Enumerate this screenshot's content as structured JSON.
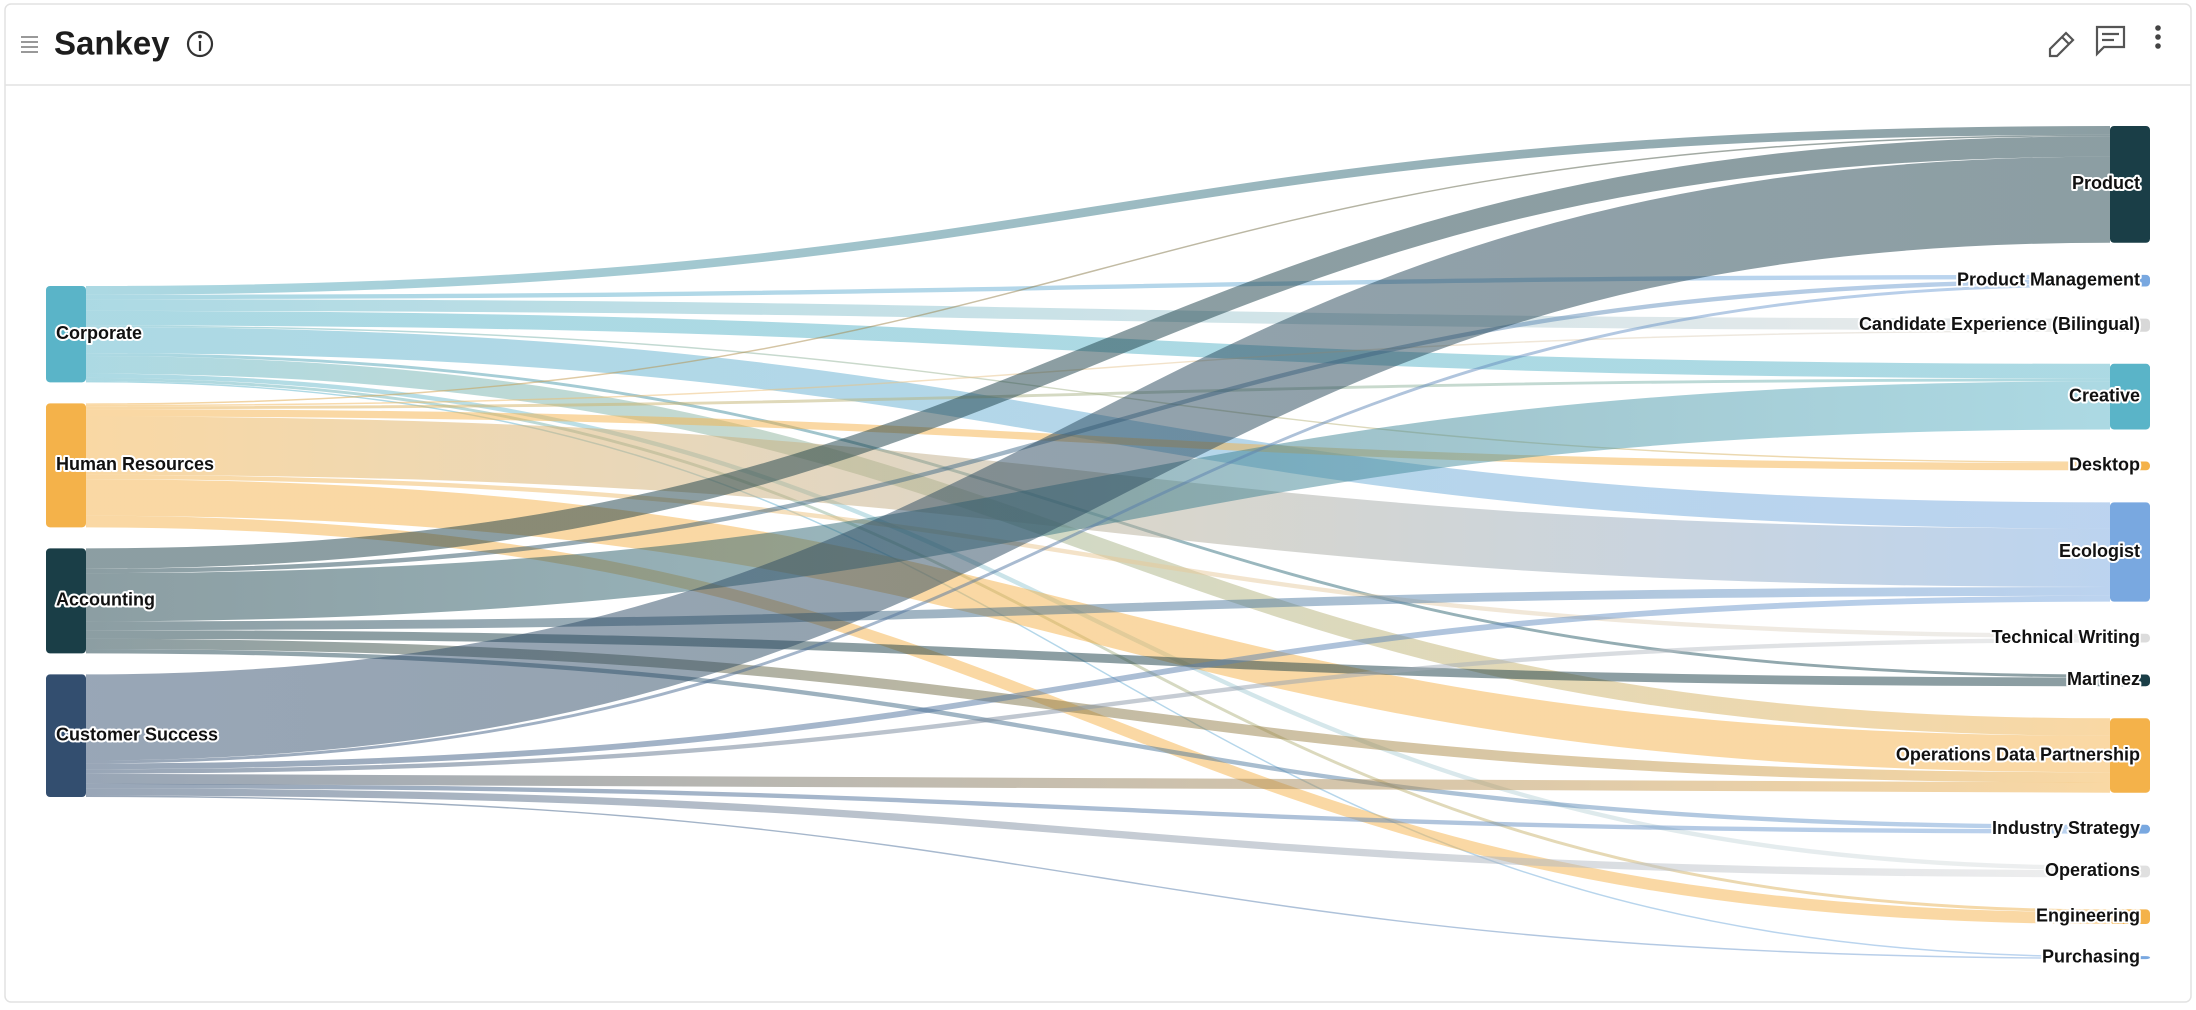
{
  "chart_data": {
    "type": "sankey",
    "title": "Sankey",
    "sources": [
      {
        "name": "Corporate",
        "color": "#5ab4c8"
      },
      {
        "name": "Human Resources",
        "color": "#f4b24a"
      },
      {
        "name": "Accounting",
        "color": "#1a3e47"
      },
      {
        "name": "Customer Success",
        "color": "#334e6f"
      }
    ],
    "targets": [
      {
        "name": "Product",
        "color": "#1a3e47"
      },
      {
        "name": "Product Management",
        "color": "#79a8e0"
      },
      {
        "name": "Candidate Experience (Bilingual)",
        "color": "#d8d8d8"
      },
      {
        "name": "Creative",
        "color": "#5ab4c8"
      },
      {
        "name": "Desktop",
        "color": "#f4b24a"
      },
      {
        "name": "Ecologist",
        "color": "#79a8e0"
      },
      {
        "name": "Technical Writing",
        "color": "#dcdcdc"
      },
      {
        "name": "Martinez",
        "color": "#1a3e47"
      },
      {
        "name": "Operations Data Partnership",
        "color": "#f4b24a"
      },
      {
        "name": "Industry Strategy",
        "color": "#79a8e0"
      },
      {
        "name": "Operations",
        "color": "#e0e0e0"
      },
      {
        "name": "Engineering",
        "color": "#f4b24a"
      },
      {
        "name": "Purchasing",
        "color": "#79a8e0"
      }
    ],
    "links": [
      {
        "source": "Corporate",
        "target": "Product",
        "value": 6
      },
      {
        "source": "Corporate",
        "target": "Product Management",
        "value": 3
      },
      {
        "source": "Corporate",
        "target": "Candidate Experience (Bilingual)",
        "value": 8
      },
      {
        "source": "Corporate",
        "target": "Creative",
        "value": 10
      },
      {
        "source": "Corporate",
        "target": "Desktop",
        "value": 1
      },
      {
        "source": "Corporate",
        "target": "Ecologist",
        "value": 18
      },
      {
        "source": "Corporate",
        "target": "Martinez",
        "value": 2
      },
      {
        "source": "Corporate",
        "target": "Operations Data Partnership",
        "value": 12
      },
      {
        "source": "Corporate",
        "target": "Operations",
        "value": 3
      },
      {
        "source": "Corporate",
        "target": "Engineering",
        "value": 2
      },
      {
        "source": "Corporate",
        "target": "Purchasing",
        "value": 1
      },
      {
        "source": "Human Resources",
        "target": "Product",
        "value": 1
      },
      {
        "source": "Human Resources",
        "target": "Candidate Experience (Bilingual)",
        "value": 1
      },
      {
        "source": "Human Resources",
        "target": "Creative",
        "value": 2
      },
      {
        "source": "Human Resources",
        "target": "Desktop",
        "value": 5
      },
      {
        "source": "Human Resources",
        "target": "Ecologist",
        "value": 40
      },
      {
        "source": "Human Resources",
        "target": "Technical Writing",
        "value": 3
      },
      {
        "source": "Human Resources",
        "target": "Operations Data Partnership",
        "value": 25
      },
      {
        "source": "Human Resources",
        "target": "Engineering",
        "value": 8
      },
      {
        "source": "Accounting",
        "target": "Product",
        "value": 14
      },
      {
        "source": "Accounting",
        "target": "Product Management",
        "value": 3
      },
      {
        "source": "Accounting",
        "target": "Creative",
        "value": 33
      },
      {
        "source": "Accounting",
        "target": "Ecologist",
        "value": 6
      },
      {
        "source": "Accounting",
        "target": "Martinez",
        "value": 6
      },
      {
        "source": "Accounting",
        "target": "Operations Data Partnership",
        "value": 7
      },
      {
        "source": "Accounting",
        "target": "Industry Strategy",
        "value": 3
      },
      {
        "source": "Customer Success",
        "target": "Product",
        "value": 59
      },
      {
        "source": "Customer Success",
        "target": "Product Management",
        "value": 2
      },
      {
        "source": "Customer Success",
        "target": "Ecologist",
        "value": 4
      },
      {
        "source": "Customer Success",
        "target": "Technical Writing",
        "value": 3
      },
      {
        "source": "Customer Success",
        "target": "Operations Data Partnership",
        "value": 7
      },
      {
        "source": "Customer Success",
        "target": "Industry Strategy",
        "value": 3
      },
      {
        "source": "Customer Success",
        "target": "Operations",
        "value": 5
      },
      {
        "source": "Customer Success",
        "target": "Purchasing",
        "value": 1
      }
    ]
  }
}
